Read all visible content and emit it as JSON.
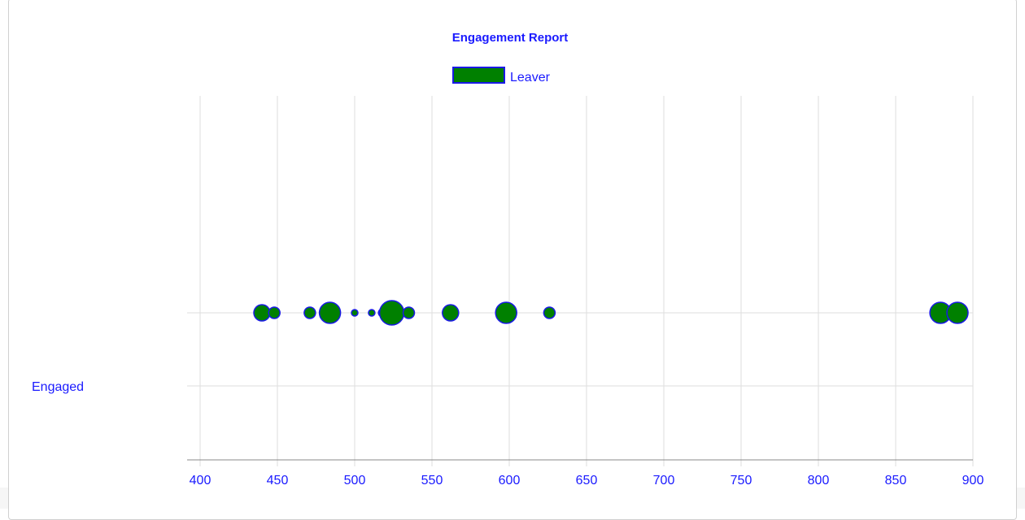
{
  "colors": {
    "text": "#1a1aff",
    "point_fill": "#008000",
    "point_stroke": "#1a1ae6",
    "grid": "#dddddd",
    "axis": "#888888"
  },
  "chart_data": {
    "type": "scatter",
    "title": "Engagement Report",
    "legend": {
      "position": "top-center",
      "entries": [
        "Leaver"
      ]
    },
    "xlim": [
      400,
      900
    ],
    "x_ticks": [
      400,
      450,
      500,
      550,
      600,
      650,
      700,
      750,
      800,
      850,
      900
    ],
    "y_categories": [
      "Engaged"
    ],
    "grid": true,
    "series": [
      {
        "name": "Leaver",
        "points": [
          {
            "x": 440,
            "size": 10
          },
          {
            "x": 448,
            "size": 7
          },
          {
            "x": 471,
            "size": 7
          },
          {
            "x": 484,
            "size": 13
          },
          {
            "x": 500,
            "size": 4
          },
          {
            "x": 511,
            "size": 4
          },
          {
            "x": 518,
            "size": 5
          },
          {
            "x": 524,
            "size": 15
          },
          {
            "x": 535,
            "size": 7
          },
          {
            "x": 562,
            "size": 10
          },
          {
            "x": 598,
            "size": 13
          },
          {
            "x": 626,
            "size": 7
          },
          {
            "x": 879,
            "size": 13
          },
          {
            "x": 890,
            "size": 13
          }
        ]
      }
    ]
  }
}
